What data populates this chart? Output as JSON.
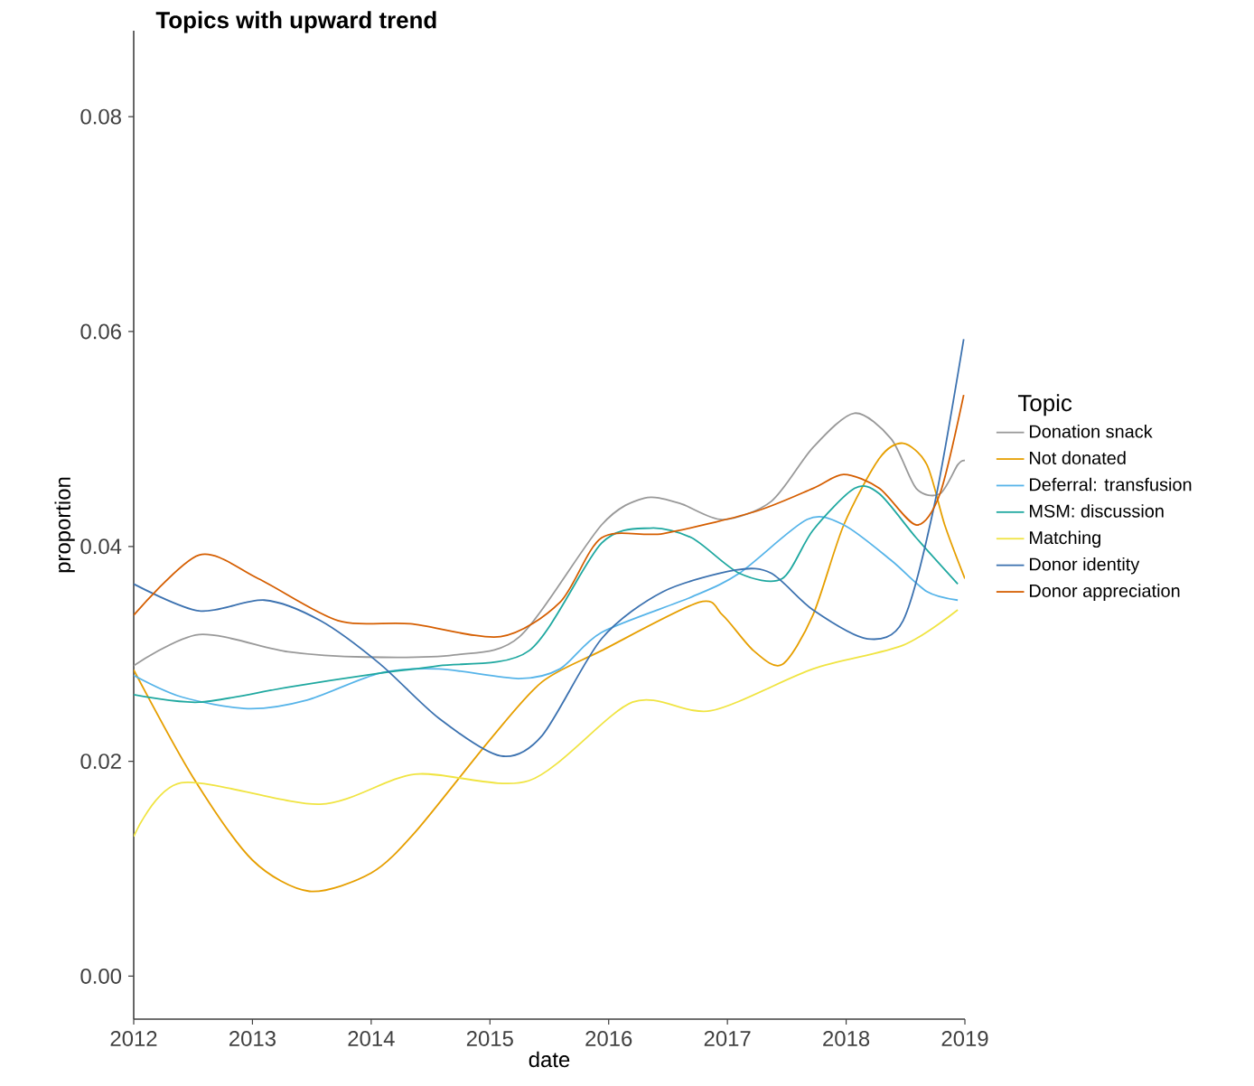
{
  "chart_data": {
    "type": "line",
    "title": "Topics with upward trend",
    "xlabel": "date",
    "ylabel": "proportion",
    "legend_title": "Topic",
    "legend": "right",
    "grid": false,
    "xlim": [
      2012,
      2019
    ],
    "ylim": [
      -0.004,
      0.088
    ],
    "xticks": [
      2012,
      2013,
      2014,
      2015,
      2016,
      2017,
      2018,
      2019
    ],
    "yticks": [
      {
        "value": 0,
        "label": "0.00"
      },
      {
        "value": 0.02,
        "label": "0.02"
      },
      {
        "value": 0.04,
        "label": "0.04"
      },
      {
        "value": 0.06,
        "label": "0.06"
      },
      {
        "value": 0.08,
        "label": "0.08"
      }
    ],
    "series": [
      {
        "name": "Donation snack",
        "color": "#999999",
        "x": [
          2012,
          2012.55,
          2013.3,
          2013.96,
          2014.7,
          2015.25,
          2015.94,
          2016.3,
          2016.6,
          2016.96,
          2017.37,
          2017.72,
          2018.07,
          2018.38,
          2018.59,
          2018.79,
          2018.94,
          2019
        ],
        "values": [
          0.0289,
          0.0318,
          0.0302,
          0.0297,
          0.0299,
          0.0316,
          0.042,
          0.0445,
          0.044,
          0.0425,
          0.0442,
          0.0492,
          0.0524,
          0.05,
          0.0454,
          0.0449,
          0.0476,
          0.048
        ]
      },
      {
        "name": "Not donated",
        "color": "#E69F00",
        "x": [
          2012,
          2012.5,
          2013,
          2013.48,
          2014,
          2014.37,
          2015,
          2015.44,
          2015.94,
          2016.76,
          2016.96,
          2017.22,
          2017.46,
          2017.72,
          2017.98,
          2018.28,
          2018.48,
          2018.68,
          2018.83,
          2019
        ],
        "values": [
          0.0285,
          0.0185,
          0.0108,
          0.0079,
          0.0096,
          0.0134,
          0.022,
          0.0274,
          0.0303,
          0.0348,
          0.0336,
          0.0303,
          0.029,
          0.0336,
          0.042,
          0.0482,
          0.0496,
          0.0476,
          0.042,
          0.037
        ]
      },
      {
        "name": "Deferral: transfusion",
        "color": "#56B4E9",
        "x": [
          2012,
          2012.4,
          2012.96,
          2013.46,
          2014.07,
          2014.57,
          2015.24,
          2015.59,
          2015.94,
          2016.7,
          2017.1,
          2017.67,
          2017.98,
          2018.38,
          2018.68,
          2018.94
        ],
        "values": [
          0.028,
          0.026,
          0.0249,
          0.0257,
          0.0282,
          0.0286,
          0.0277,
          0.0286,
          0.032,
          0.0353,
          0.0375,
          0.0425,
          0.042,
          0.0387,
          0.0358,
          0.035
        ]
      },
      {
        "name": "MSM: discussion",
        "color": "#1FA8A0",
        "x": [
          2012,
          2012.55,
          2013.3,
          2014.07,
          2014.57,
          2015.33,
          2015.94,
          2016.35,
          2016.7,
          2017.1,
          2017.46,
          2017.72,
          2018.07,
          2018.28,
          2018.59,
          2018.94
        ],
        "values": [
          0.0262,
          0.0255,
          0.0269,
          0.0282,
          0.0289,
          0.0303,
          0.0403,
          0.0417,
          0.0408,
          0.0375,
          0.037,
          0.0415,
          0.0454,
          0.0449,
          0.0408,
          0.0365
        ]
      },
      {
        "name": "Matching",
        "color": "#F0E442",
        "x": [
          2012,
          2012.4,
          2013.57,
          2014.37,
          2015.33,
          2016.2,
          2016.86,
          2017.72,
          2018.48,
          2018.94
        ],
        "values": [
          0.013,
          0.018,
          0.016,
          0.0188,
          0.0182,
          0.0255,
          0.0247,
          0.0286,
          0.0308,
          0.0341
        ]
      },
      {
        "name": "Donor identity",
        "color": "#3C72B0",
        "x": [
          2012,
          2012.55,
          2013.1,
          2013.57,
          2014.07,
          2014.57,
          2015.09,
          2015.44,
          2015.94,
          2016.46,
          2017.07,
          2017.37,
          2017.72,
          2018.18,
          2018.48,
          2018.74,
          2018.99
        ],
        "values": [
          0.0365,
          0.034,
          0.035,
          0.0331,
          0.0291,
          0.024,
          0.0205,
          0.0224,
          0.0314,
          0.0358,
          0.0378,
          0.0375,
          0.0341,
          0.0314,
          0.0331,
          0.0437,
          0.0593
        ]
      },
      {
        "name": "Donor appreciation",
        "color": "#D55E00",
        "x": [
          2012,
          2012.55,
          2013.05,
          2013.72,
          2014.33,
          2015.09,
          2015.59,
          2015.94,
          2016.46,
          2017.22,
          2017.72,
          2017.98,
          2018.28,
          2018.59,
          2018.79,
          2018.99
        ],
        "values": [
          0.0336,
          0.0392,
          0.037,
          0.0331,
          0.0328,
          0.0316,
          0.0348,
          0.0408,
          0.0412,
          0.0432,
          0.0454,
          0.0467,
          0.0454,
          0.042,
          0.0449,
          0.0541
        ]
      }
    ]
  }
}
